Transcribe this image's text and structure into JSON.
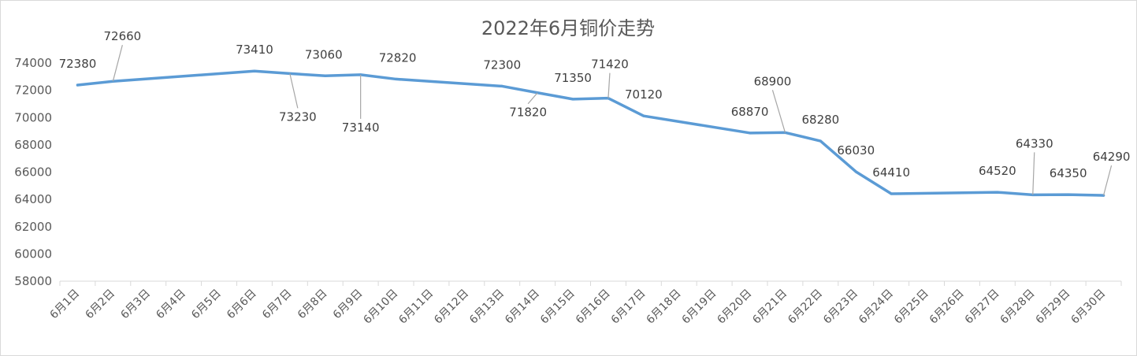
{
  "chart_data": {
    "type": "line",
    "title": "2022年6月铜价走势",
    "xlabel": "",
    "ylabel": "",
    "ylim": [
      58000,
      74000
    ],
    "yticks": [
      58000,
      60000,
      62000,
      64000,
      66000,
      68000,
      70000,
      72000,
      74000
    ],
    "grid": false,
    "legend": "none",
    "line_color": "#5B9BD5",
    "categories": [
      "6月1日",
      "6月2日",
      "6月3日",
      "6月4日",
      "6月5日",
      "6月6日",
      "6月7日",
      "6月8日",
      "6月9日",
      "6月10日",
      "6月11日",
      "6月12日",
      "6月13日",
      "6月14日",
      "6月15日",
      "6月16日",
      "6月17日",
      "6月18日",
      "6月19日",
      "6月20日",
      "6月21日",
      "6月22日",
      "6月23日",
      "6月24日",
      "6月25日",
      "6月26日",
      "6月27日",
      "6月28日",
      "6月29日",
      "6月30日"
    ],
    "points": [
      {
        "x": "6月1日",
        "y": 72380
      },
      {
        "x": "6月2日",
        "y": 72660
      },
      {
        "x": "6月6日",
        "y": 73410
      },
      {
        "x": "6月7日",
        "y": 73230
      },
      {
        "x": "6月8日",
        "y": 73060
      },
      {
        "x": "6月9日",
        "y": 73140
      },
      {
        "x": "6月10日",
        "y": 72820
      },
      {
        "x": "6月13日",
        "y": 72300
      },
      {
        "x": "6月14日",
        "y": 71820
      },
      {
        "x": "6月15日",
        "y": 71350
      },
      {
        "x": "6月16日",
        "y": 71420
      },
      {
        "x": "6月17日",
        "y": 70120
      },
      {
        "x": "6月20日",
        "y": 68870
      },
      {
        "x": "6月21日",
        "y": 68900
      },
      {
        "x": "6月22日",
        "y": 68280
      },
      {
        "x": "6月23日",
        "y": 66030
      },
      {
        "x": "6月24日",
        "y": 64410
      },
      {
        "x": "6月27日",
        "y": 64520
      },
      {
        "x": "6月28日",
        "y": 64330
      },
      {
        "x": "6月29日",
        "y": 64350
      },
      {
        "x": "6月30日",
        "y": 64290
      }
    ]
  }
}
